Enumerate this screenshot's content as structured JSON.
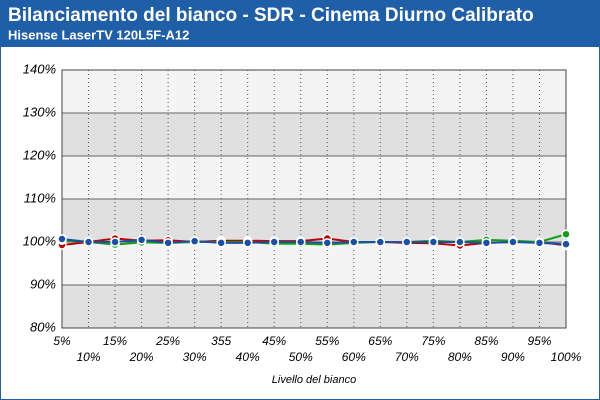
{
  "chart_data": {
    "type": "line",
    "title": "Bilanciamento del bianco - SDR - Cinema Diurno Calibrato",
    "subtitle": "Hisense LaserTV 120L5F-A12",
    "x_label": "Livello del bianco",
    "categories": [
      "5%",
      "10%",
      "15%",
      "20%",
      "25%",
      "30%",
      "355",
      "40%",
      "45%",
      "50%",
      "55%",
      "60%",
      "65%",
      "70%",
      "75%",
      "80%",
      "85%",
      "90%",
      "95%",
      "100%"
    ],
    "ylim": [
      80,
      140
    ],
    "yticks": [
      {
        "value": 80,
        "label": "80%"
      },
      {
        "value": 90,
        "label": "90%"
      },
      {
        "value": 100,
        "label": "100%"
      },
      {
        "value": 110,
        "label": "110%"
      },
      {
        "value": 120,
        "label": "120%"
      },
      {
        "value": 130,
        "label": "130%"
      },
      {
        "value": 140,
        "label": "140%"
      }
    ],
    "grid": true,
    "series": [
      {
        "color": "#c00000",
        "values": [
          99.3,
          100,
          100.8,
          100.3,
          100.4,
          100,
          100.3,
          100.3,
          100.2,
          100.2,
          100.8,
          100,
          100,
          99.8,
          99.7,
          99.2,
          99.8,
          100,
          100,
          99.2
        ]
      },
      {
        "color": "#10a010",
        "values": [
          100.4,
          100,
          99.4,
          99.9,
          99.8,
          100,
          100,
          100,
          99.6,
          99.6,
          99.4,
          99.8,
          100,
          100,
          100.3,
          100,
          100.5,
          100.3,
          100,
          101.8
        ]
      },
      {
        "color": "#1a4fa8",
        "values": [
          100.7,
          100,
          100,
          100.5,
          99.8,
          100.2,
          99.8,
          99.8,
          100,
          100,
          99.8,
          100,
          100,
          100,
          100,
          100,
          99.8,
          100,
          99.8,
          99.5
        ]
      }
    ]
  }
}
